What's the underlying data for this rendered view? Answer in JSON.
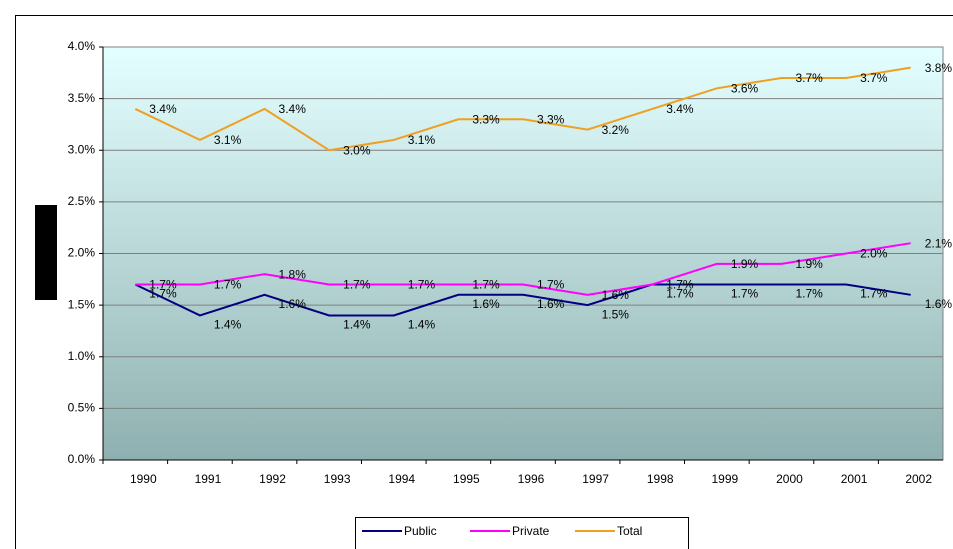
{
  "chart_data": {
    "type": "line",
    "categories": [
      "1990",
      "1991",
      "1992",
      "1993",
      "1994",
      "1995",
      "1996",
      "1997",
      "1998",
      "1999",
      "2000",
      "2001",
      "2002"
    ],
    "series": [
      {
        "name": "Public",
        "color": "#000080",
        "values": [
          1.7,
          1.4,
          1.6,
          1.4,
          1.4,
          1.6,
          1.6,
          1.5,
          1.7,
          1.7,
          1.7,
          1.7,
          1.6
        ],
        "value_labels": [
          "1.7%",
          "1.4%",
          "1.6%",
          "1.4%",
          "1.4%",
          "1.6%",
          "1.6%",
          "1.5%",
          "1.7%",
          "1.7%",
          "1.7%",
          "1.7%",
          "1.6%"
        ]
      },
      {
        "name": "Private",
        "color": "#ff00ff",
        "values": [
          1.7,
          1.7,
          1.8,
          1.7,
          1.7,
          1.7,
          1.7,
          1.6,
          1.7,
          1.9,
          1.9,
          2.0,
          2.1
        ],
        "value_labels": [
          "1.7%",
          "1.7%",
          "1.8%",
          "1.7%",
          "1.7%",
          "1.7%",
          "1.7%",
          "1.6%",
          "1.7%",
          "1.9%",
          "1.9%",
          "2.0%",
          "2.1%"
        ]
      },
      {
        "name": "Total",
        "color": "#f0a020",
        "values": [
          3.4,
          3.1,
          3.4,
          3.0,
          3.1,
          3.3,
          3.3,
          3.2,
          3.4,
          3.6,
          3.7,
          3.7,
          3.8
        ],
        "value_labels": [
          "3.4%",
          "3.1%",
          "3.4%",
          "3.0%",
          "3.1%",
          "3.3%",
          "3.3%",
          "3.2%",
          "3.4%",
          "3.6%",
          "3.7%",
          "3.7%",
          "3.8%"
        ]
      }
    ],
    "ylim": [
      0,
      4
    ],
    "yticks": [
      {
        "value": 0,
        "label": "0.0%"
      },
      {
        "value": 0.5,
        "label": "0.5%"
      },
      {
        "value": 1,
        "label": "1.0%"
      },
      {
        "value": 1.5,
        "label": "1.5%"
      },
      {
        "value": 2,
        "label": "2.0%"
      },
      {
        "value": 2.5,
        "label": "2.5%"
      },
      {
        "value": 3,
        "label": "3.0%"
      },
      {
        "value": 3.5,
        "label": "3.5%"
      },
      {
        "value": 4,
        "label": "4.0%"
      }
    ],
    "grid": true,
    "legend": "bottom"
  }
}
